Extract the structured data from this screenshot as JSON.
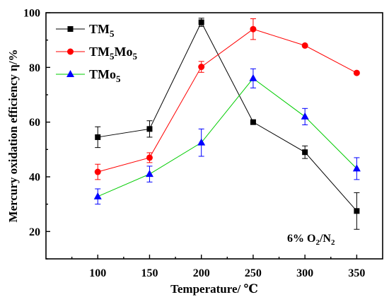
{
  "chart_data": {
    "type": "line",
    "xlabel": "Temperature/ ℃",
    "ylabel": "Mercury oxidation efficiency η/%",
    "x": [
      100,
      150,
      200,
      250,
      300,
      350
    ],
    "xlim": [
      50,
      375
    ],
    "ylim": [
      10,
      100
    ],
    "xticks": [
      "100",
      "150",
      "200",
      "250",
      "300",
      "350"
    ],
    "yticks": [
      "20",
      "40",
      "60",
      "80",
      "100"
    ],
    "legend_position": "top-left",
    "grid": false,
    "annotation": {
      "main": "6% O",
      "sub1": "2",
      "mid": "/N",
      "sub2": "2"
    },
    "series": [
      {
        "name": "TM5",
        "name_main": "TM",
        "name_sub": "5",
        "name_rest": "",
        "name_sub2": "",
        "color": "#000000",
        "marker": "square",
        "values": [
          54.5,
          57.5,
          96.5,
          60.0,
          49.0,
          27.5
        ],
        "errors": [
          3.8,
          3.0,
          1.5,
          0,
          2.3,
          6.7
        ]
      },
      {
        "name": "TM5Mo5",
        "name_main": "TM",
        "name_sub": "5",
        "name_rest": "Mo",
        "name_sub2": "5",
        "color": "#ff0000",
        "marker": "circle",
        "values": [
          41.8,
          47.0,
          80.2,
          94.0,
          88.0,
          78.0
        ],
        "errors": [
          2.8,
          1.8,
          2.0,
          3.8,
          0,
          0
        ]
      },
      {
        "name": "TMo5",
        "name_main": "TMo",
        "name_sub": "5",
        "name_rest": "",
        "name_sub2": "",
        "color": "#0000ff",
        "line_color": "#00cc00",
        "marker": "triangle",
        "values": [
          32.8,
          41.0,
          52.5,
          76.0,
          62.0,
          43.0
        ],
        "errors": [
          2.8,
          2.9,
          5.0,
          3.5,
          3.0,
          4.0
        ]
      }
    ]
  }
}
